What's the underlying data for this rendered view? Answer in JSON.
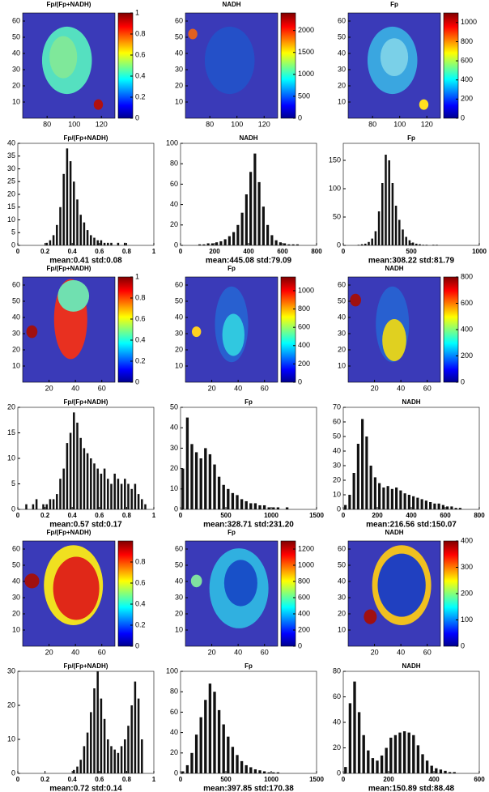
{
  "chart_data": [
    {
      "type": "heatmap",
      "title": "Fp/(Fp+NADH)",
      "xlim": [
        62,
        130
      ],
      "ylim": [
        0,
        65
      ],
      "xticks": [
        80,
        100,
        120
      ],
      "yticks": [
        10,
        20,
        30,
        40,
        50,
        60
      ],
      "clim": [
        0,
        1
      ],
      "cticks": [
        0,
        0.2,
        0.4,
        0.6,
        0.8,
        1
      ]
    },
    {
      "type": "heatmap",
      "title": "NADH",
      "xlim": [
        62,
        130
      ],
      "ylim": [
        0,
        65
      ],
      "xticks": [
        80,
        100,
        120
      ],
      "yticks": [
        10,
        20,
        30,
        40,
        50,
        60
      ],
      "clim": [
        0,
        2400
      ],
      "cticks": [
        0,
        500,
        1000,
        1500,
        2000
      ]
    },
    {
      "type": "heatmap",
      "title": "Fp",
      "xlim": [
        62,
        130
      ],
      "ylim": [
        0,
        65
      ],
      "xticks": [
        80,
        100,
        120
      ],
      "yticks": [
        10,
        20,
        30,
        40,
        50,
        60
      ],
      "clim": [
        0,
        1100
      ],
      "cticks": [
        0,
        200,
        400,
        600,
        800,
        1000
      ]
    },
    {
      "type": "histogram",
      "title": "Fp/(Fp+NADH)",
      "stats": "mean:0.41 std:0.08",
      "xlim": [
        0,
        1
      ],
      "ylim": [
        0,
        40
      ],
      "xticks": [
        0,
        0.2,
        0.4,
        0.6,
        0.8,
        1
      ],
      "yticks": [
        0,
        5,
        10,
        15,
        20,
        25,
        30,
        35,
        40
      ],
      "bins": [
        0.2,
        0.225,
        0.25,
        0.275,
        0.3,
        0.325,
        0.35,
        0.375,
        0.4,
        0.425,
        0.45,
        0.475,
        0.5,
        0.525,
        0.55,
        0.575,
        0.6,
        0.625,
        0.65,
        0.675,
        0.7,
        0.725,
        0.75,
        0.775,
        0.8
      ],
      "values": [
        1,
        2,
        4,
        8,
        15,
        28,
        38,
        33,
        25,
        18,
        12,
        9,
        6,
        4,
        3,
        2,
        2,
        1,
        1,
        1,
        0,
        1,
        0,
        1
      ]
    },
    {
      "type": "histogram",
      "title": "NADH",
      "stats": "mean:445.08 std:79.09",
      "xlim": [
        0,
        800
      ],
      "ylim": [
        0,
        100
      ],
      "xticks": [
        0,
        200,
        400,
        600,
        800
      ],
      "yticks": [
        0,
        20,
        40,
        60,
        80,
        100
      ],
      "bins": [
        100,
        125,
        150,
        175,
        200,
        225,
        250,
        275,
        300,
        325,
        350,
        375,
        400,
        425,
        450,
        475,
        500,
        525,
        550,
        575,
        600,
        625,
        650,
        675,
        700
      ],
      "values": [
        1,
        1,
        2,
        2,
        3,
        4,
        6,
        9,
        13,
        20,
        32,
        50,
        72,
        90,
        62,
        38,
        20,
        10,
        5,
        3,
        2,
        1,
        1,
        1
      ]
    },
    {
      "type": "histogram",
      "title": "Fp",
      "stats": "mean:308.22 std:81.79",
      "xlim": [
        0,
        1000
      ],
      "ylim": [
        0,
        180
      ],
      "xticks": [
        0,
        500,
        1000
      ],
      "yticks": [
        0,
        50,
        100,
        150
      ],
      "bins": [
        100,
        125,
        150,
        175,
        200,
        225,
        250,
        275,
        300,
        325,
        350,
        375,
        400,
        425,
        450,
        475,
        500,
        525,
        550,
        575,
        600,
        625,
        650,
        675,
        700
      ],
      "values": [
        1,
        2,
        3,
        6,
        12,
        25,
        60,
        110,
        160,
        150,
        110,
        70,
        45,
        28,
        15,
        9,
        5,
        3,
        2,
        1,
        1,
        0,
        1,
        1
      ]
    },
    {
      "type": "heatmap",
      "title": "Fp/(Fp+NADH)",
      "xlim": [
        0,
        70
      ],
      "ylim": [
        0,
        65
      ],
      "xticks": [
        20,
        40,
        60
      ],
      "yticks": [
        10,
        20,
        30,
        40,
        50,
        60
      ],
      "clim": [
        0,
        1
      ],
      "cticks": [
        0,
        0.2,
        0.4,
        0.6,
        0.8,
        1
      ]
    },
    {
      "type": "heatmap",
      "title": "Fp",
      "xlim": [
        0,
        70
      ],
      "ylim": [
        0,
        65
      ],
      "xticks": [
        20,
        40,
        60
      ],
      "yticks": [
        10,
        20,
        30,
        40,
        50,
        60
      ],
      "clim": [
        0,
        1150
      ],
      "cticks": [
        0,
        200,
        400,
        600,
        800,
        1000
      ]
    },
    {
      "type": "heatmap",
      "title": "NADH",
      "xlim": [
        0,
        70
      ],
      "ylim": [
        0,
        65
      ],
      "xticks": [
        20,
        40,
        60
      ],
      "yticks": [
        10,
        20,
        30,
        40,
        50,
        60
      ],
      "clim": [
        0,
        800
      ],
      "cticks": [
        0,
        200,
        400,
        600,
        800
      ]
    },
    {
      "type": "histogram",
      "title": "Fp/(Fp+NADH)",
      "stats": "mean:0.57 std:0.17",
      "xlim": [
        0,
        1
      ],
      "ylim": [
        0,
        20
      ],
      "xticks": [
        0,
        0.2,
        0.4,
        0.6,
        0.8,
        1
      ],
      "yticks": [
        0,
        5,
        10,
        15,
        20
      ],
      "bins": [
        0,
        0.025,
        0.05,
        0.075,
        0.1,
        0.125,
        0.15,
        0.175,
        0.2,
        0.225,
        0.25,
        0.275,
        0.3,
        0.325,
        0.35,
        0.375,
        0.4,
        0.425,
        0.45,
        0.475,
        0.5,
        0.525,
        0.55,
        0.575,
        0.6,
        0.625,
        0.65,
        0.675,
        0.7,
        0.725,
        0.75,
        0.775,
        0.8,
        0.825,
        0.85,
        0.875,
        0.9,
        0.925,
        0.95,
        0.975,
        1
      ],
      "values": [
        0,
        0,
        1,
        0,
        1,
        2,
        0,
        1,
        1,
        2,
        2,
        3,
        6,
        8,
        13,
        15,
        19,
        17,
        14,
        12,
        11,
        10,
        9,
        8,
        7,
        8,
        6,
        5,
        7,
        6,
        5,
        6,
        5,
        4,
        5,
        3,
        2,
        1,
        0,
        0
      ]
    },
    {
      "type": "histogram",
      "title": "Fp",
      "stats": "mean:328.71 std:231.20",
      "xlim": [
        0,
        1500
      ],
      "ylim": [
        0,
        50
      ],
      "xticks": [
        0,
        500,
        1000,
        1500
      ],
      "yticks": [
        0,
        10,
        20,
        30,
        40,
        50
      ],
      "bins": [
        0,
        50,
        100,
        150,
        200,
        250,
        300,
        350,
        400,
        450,
        500,
        550,
        600,
        650,
        700,
        750,
        800,
        850,
        900,
        950,
        1000,
        1050,
        1100,
        1150,
        1200
      ],
      "values": [
        20,
        45,
        32,
        28,
        25,
        30,
        27,
        22,
        16,
        12,
        10,
        8,
        7,
        5,
        4,
        3,
        3,
        2,
        2,
        1,
        1,
        1,
        0,
        1
      ]
    },
    {
      "type": "histogram",
      "title": "NADH",
      "stats": "mean:216.56 std:150.07",
      "xlim": [
        0,
        800
      ],
      "ylim": [
        0,
        70
      ],
      "xticks": [
        0,
        200,
        400,
        600,
        800
      ],
      "yticks": [
        0,
        10,
        20,
        30,
        40,
        50,
        60,
        70
      ],
      "bins": [
        0,
        25,
        50,
        75,
        100,
        125,
        150,
        175,
        200,
        225,
        250,
        275,
        300,
        325,
        350,
        375,
        400,
        425,
        450,
        475,
        500,
        525,
        550,
        575,
        600,
        625,
        650,
        675,
        700
      ],
      "values": [
        3,
        10,
        25,
        45,
        62,
        50,
        30,
        22,
        18,
        15,
        16,
        14,
        15,
        13,
        11,
        10,
        9,
        8,
        7,
        6,
        5,
        4,
        4,
        3,
        2,
        2,
        1,
        1
      ]
    },
    {
      "type": "heatmap",
      "title": "Fp/(Fp+NADH)",
      "xlim": [
        0,
        70
      ],
      "ylim": [
        0,
        65
      ],
      "xticks": [
        20,
        40,
        60
      ],
      "yticks": [
        10,
        20,
        30,
        40,
        50,
        60
      ],
      "clim": [
        0,
        1
      ],
      "cticks": [
        0,
        0.2,
        0.4,
        0.6,
        0.8
      ]
    },
    {
      "type": "heatmap",
      "title": "Fp",
      "xlim": [
        0,
        70
      ],
      "ylim": [
        0,
        65
      ],
      "xticks": [
        20,
        40,
        60
      ],
      "yticks": [
        10,
        20,
        30,
        40,
        50,
        60
      ],
      "clim": [
        0,
        1300
      ],
      "cticks": [
        0,
        200,
        400,
        600,
        800,
        1000,
        1200
      ]
    },
    {
      "type": "heatmap",
      "title": "NADH",
      "xlim": [
        0,
        70
      ],
      "ylim": [
        0,
        65
      ],
      "xticks": [
        20,
        40,
        60
      ],
      "yticks": [
        10,
        20,
        30,
        40,
        50,
        60
      ],
      "clim": [
        0,
        400
      ],
      "cticks": [
        0,
        100,
        200,
        300,
        400
      ]
    },
    {
      "type": "histogram",
      "title": "Fp/(Fp+NADH)",
      "stats": "mean:0.72 std:0.14",
      "xlim": [
        0,
        1
      ],
      "ylim": [
        0,
        30
      ],
      "xticks": [
        0,
        0.2,
        0.4,
        0.6,
        0.8,
        1
      ],
      "yticks": [
        0,
        10,
        20,
        30
      ],
      "bins": [
        0.4,
        0.425,
        0.45,
        0.475,
        0.5,
        0.525,
        0.55,
        0.575,
        0.6,
        0.625,
        0.65,
        0.675,
        0.7,
        0.725,
        0.75,
        0.775,
        0.8,
        0.825,
        0.85,
        0.875,
        0.9,
        0.925,
        0.95,
        0.975,
        1
      ],
      "values": [
        1,
        2,
        4,
        8,
        12,
        18,
        25,
        30,
        22,
        16,
        10,
        8,
        7,
        6,
        8,
        10,
        14,
        20,
        27,
        22,
        10,
        0,
        0,
        0
      ]
    },
    {
      "type": "histogram",
      "title": "Fp",
      "stats": "mean:397.85 std:170.38",
      "xlim": [
        0,
        1500
      ],
      "ylim": [
        0,
        100
      ],
      "xticks": [
        0,
        500,
        1000,
        1500
      ],
      "yticks": [
        0,
        20,
        40,
        60,
        80,
        100
      ],
      "bins": [
        0,
        50,
        100,
        150,
        200,
        250,
        300,
        350,
        400,
        450,
        500,
        550,
        600,
        650,
        700,
        750,
        800,
        850,
        900,
        950,
        1000,
        1050,
        1100
      ],
      "values": [
        2,
        8,
        20,
        38,
        55,
        72,
        88,
        80,
        62,
        48,
        36,
        26,
        18,
        12,
        8,
        6,
        4,
        3,
        2,
        1,
        1,
        1
      ]
    },
    {
      "type": "histogram",
      "title": "NADH",
      "stats": "mean:150.89 std:88.48",
      "xlim": [
        0,
        600
      ],
      "ylim": [
        0,
        80
      ],
      "xticks": [
        0,
        200,
        400,
        600
      ],
      "yticks": [
        0,
        20,
        40,
        60,
        80
      ],
      "bins": [
        0,
        20,
        40,
        60,
        80,
        100,
        120,
        140,
        160,
        180,
        200,
        220,
        240,
        260,
        280,
        300,
        320,
        340,
        360,
        380,
        400,
        420,
        440,
        460,
        480,
        500
      ],
      "values": [
        5,
        55,
        72,
        48,
        30,
        18,
        12,
        10,
        14,
        20,
        28,
        30,
        32,
        33,
        32,
        30,
        22,
        15,
        10,
        6,
        4,
        3,
        2,
        1,
        1
      ]
    }
  ]
}
